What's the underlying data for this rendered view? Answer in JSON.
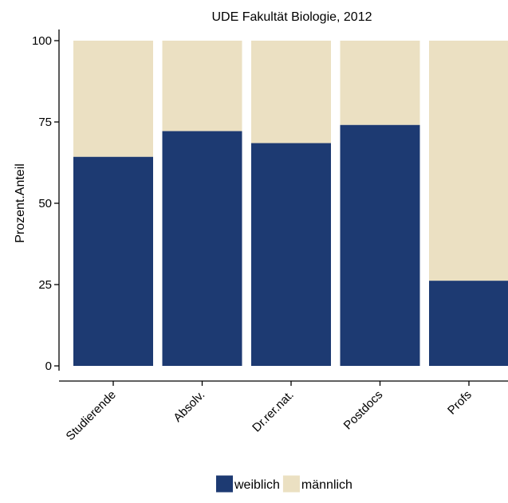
{
  "chart_data": {
    "type": "bar",
    "stacked": true,
    "title": "UDE Fakultät Biologie, 2012",
    "xlabel": "",
    "ylabel": "Prozent.Anteil",
    "ylim": [
      0,
      100
    ],
    "yticks": [
      "0",
      "25",
      "50",
      "75",
      "100"
    ],
    "categories": [
      "Studierende",
      "Absolv.",
      "Dr.rer.nat.",
      "Postdocs",
      "Profs"
    ],
    "series": [
      {
        "name": "weiblich",
        "color": "#1d3a72",
        "values": [
          64.3,
          72.2,
          68.5,
          74.1,
          26.2
        ]
      },
      {
        "name": "männlich",
        "color": "#ebe0c2",
        "values": [
          35.7,
          27.8,
          31.5,
          25.9,
          73.8
        ]
      }
    ],
    "legend_position": "bottom",
    "grid": false
  }
}
